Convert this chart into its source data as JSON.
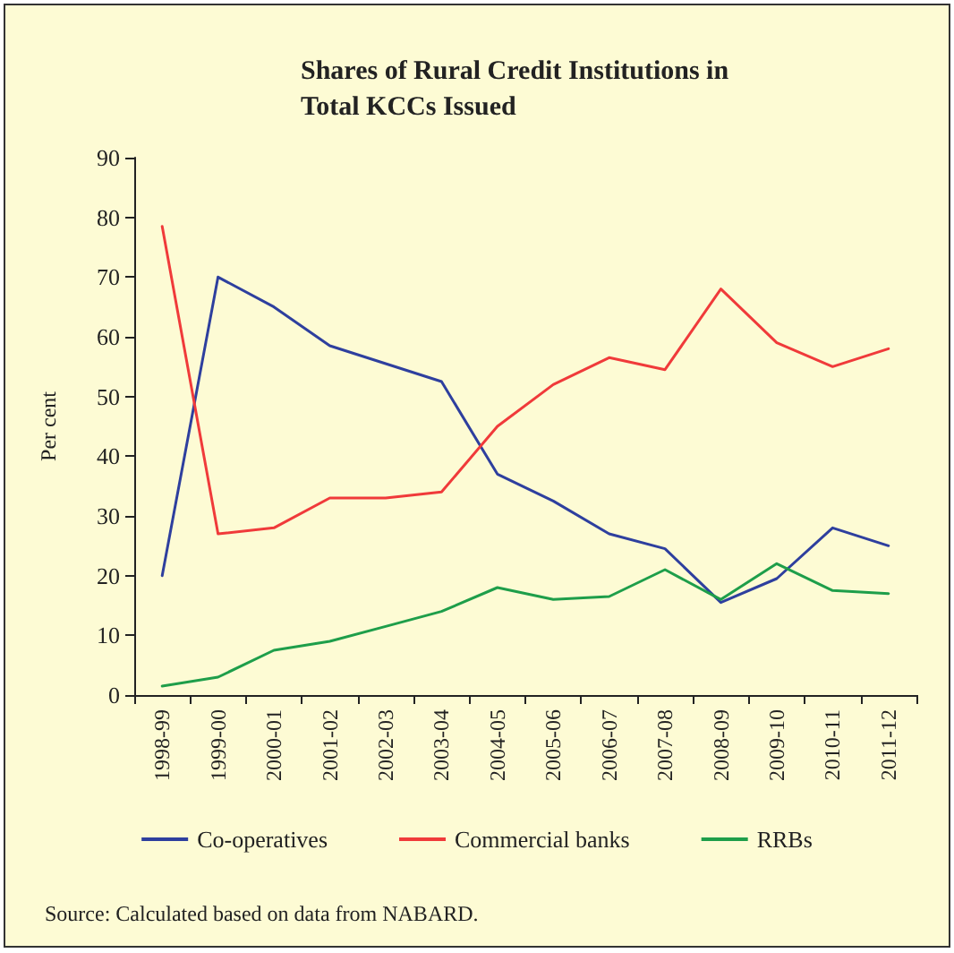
{
  "chart_data": {
    "type": "line",
    "title": "Shares of Rural Credit Institutions in\nTotal KCCs Issued",
    "ylabel": "Per cent",
    "categories": [
      "1998-99",
      "1999-00",
      "2000-01",
      "2001-02",
      "2002-03",
      "2003-04",
      "2004-05",
      "2005-06",
      "2006-07",
      "2007-08",
      "2008-09",
      "2009-10",
      "2010-11",
      "2011-12"
    ],
    "series": [
      {
        "name": "Co-operatives",
        "color": "#2e3f9e",
        "values": [
          20,
          70,
          65,
          58.5,
          55.5,
          52.5,
          37,
          32.5,
          27,
          24.5,
          15.5,
          19.5,
          28,
          25
        ]
      },
      {
        "name": "Commercial banks",
        "color": "#f03a3a",
        "values": [
          78.5,
          27,
          28,
          33,
          33,
          34,
          45,
          52,
          56.5,
          54.5,
          68,
          59,
          55,
          58
        ]
      },
      {
        "name": "RRBs",
        "color": "#1e9e4a",
        "values": [
          1.5,
          3,
          7.5,
          9,
          11.5,
          14,
          18,
          16,
          16.5,
          21,
          16,
          22,
          17.5,
          17
        ]
      }
    ],
    "ylim": [
      0,
      90
    ],
    "yticks": [
      0,
      10,
      20,
      30,
      40,
      50,
      60,
      70,
      80,
      90
    ],
    "grid": false,
    "legend": "bottom",
    "marker": "none",
    "line_style": "solid",
    "annotations": [
      "Source: Calculated based on data from NABARD."
    ]
  }
}
